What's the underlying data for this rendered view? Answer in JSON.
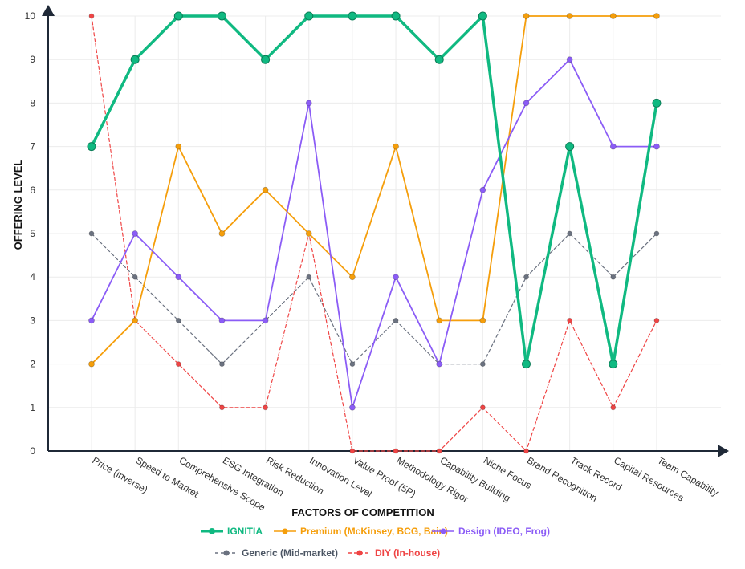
{
  "chart_data": {
    "type": "line",
    "xlabel": "FACTORS OF COMPETITION",
    "ylabel": "OFFERING LEVEL",
    "ylim": [
      0,
      10
    ],
    "yticks": [
      0,
      1,
      2,
      3,
      4,
      5,
      6,
      7,
      8,
      9,
      10
    ],
    "grid": true,
    "legend_position": "bottom",
    "categories": [
      "Price (inverse)",
      "Speed to Market",
      "Comprehensive Scope",
      "ESG Integration",
      "Risk Reduction",
      "Innovation Level",
      "Value Proof (5P)",
      "Methodology Rigor",
      "Capability Building",
      "Niche Focus",
      "Brand Recognition",
      "Track Record",
      "Capital Resources",
      "Team Capability"
    ],
    "series": [
      {
        "name": "IGNITIA",
        "color": "#10b981",
        "style": "solid",
        "emphasis": true,
        "values": [
          7,
          9,
          10,
          10,
          9,
          10,
          10,
          10,
          9,
          10,
          2,
          7,
          2,
          8
        ]
      },
      {
        "name": "Premium (McKinsey, BCG, Bain)",
        "color": "#f59e0b",
        "style": "solid",
        "emphasis": false,
        "values": [
          2,
          3,
          7,
          5,
          6,
          5,
          4,
          7,
          3,
          3,
          10,
          10,
          10,
          10
        ]
      },
      {
        "name": "Design (IDEO, Frog)",
        "color": "#8b5cf6",
        "style": "solid",
        "emphasis": false,
        "values": [
          3,
          5,
          4,
          3,
          3,
          8,
          1,
          4,
          2,
          6,
          8,
          9,
          7,
          7
        ]
      },
      {
        "name": "Generic (Mid-market)",
        "color": "#6b7280",
        "style": "dashed",
        "emphasis": false,
        "values": [
          5,
          4,
          3,
          2,
          3,
          4,
          2,
          3,
          2,
          2,
          4,
          5,
          4,
          5
        ]
      },
      {
        "name": "DIY (In-house)",
        "color": "#ef4444",
        "style": "dashed",
        "emphasis": false,
        "values": [
          10,
          3,
          2,
          1,
          1,
          5,
          0,
          0,
          0,
          1,
          0,
          3,
          1,
          3
        ]
      }
    ]
  }
}
